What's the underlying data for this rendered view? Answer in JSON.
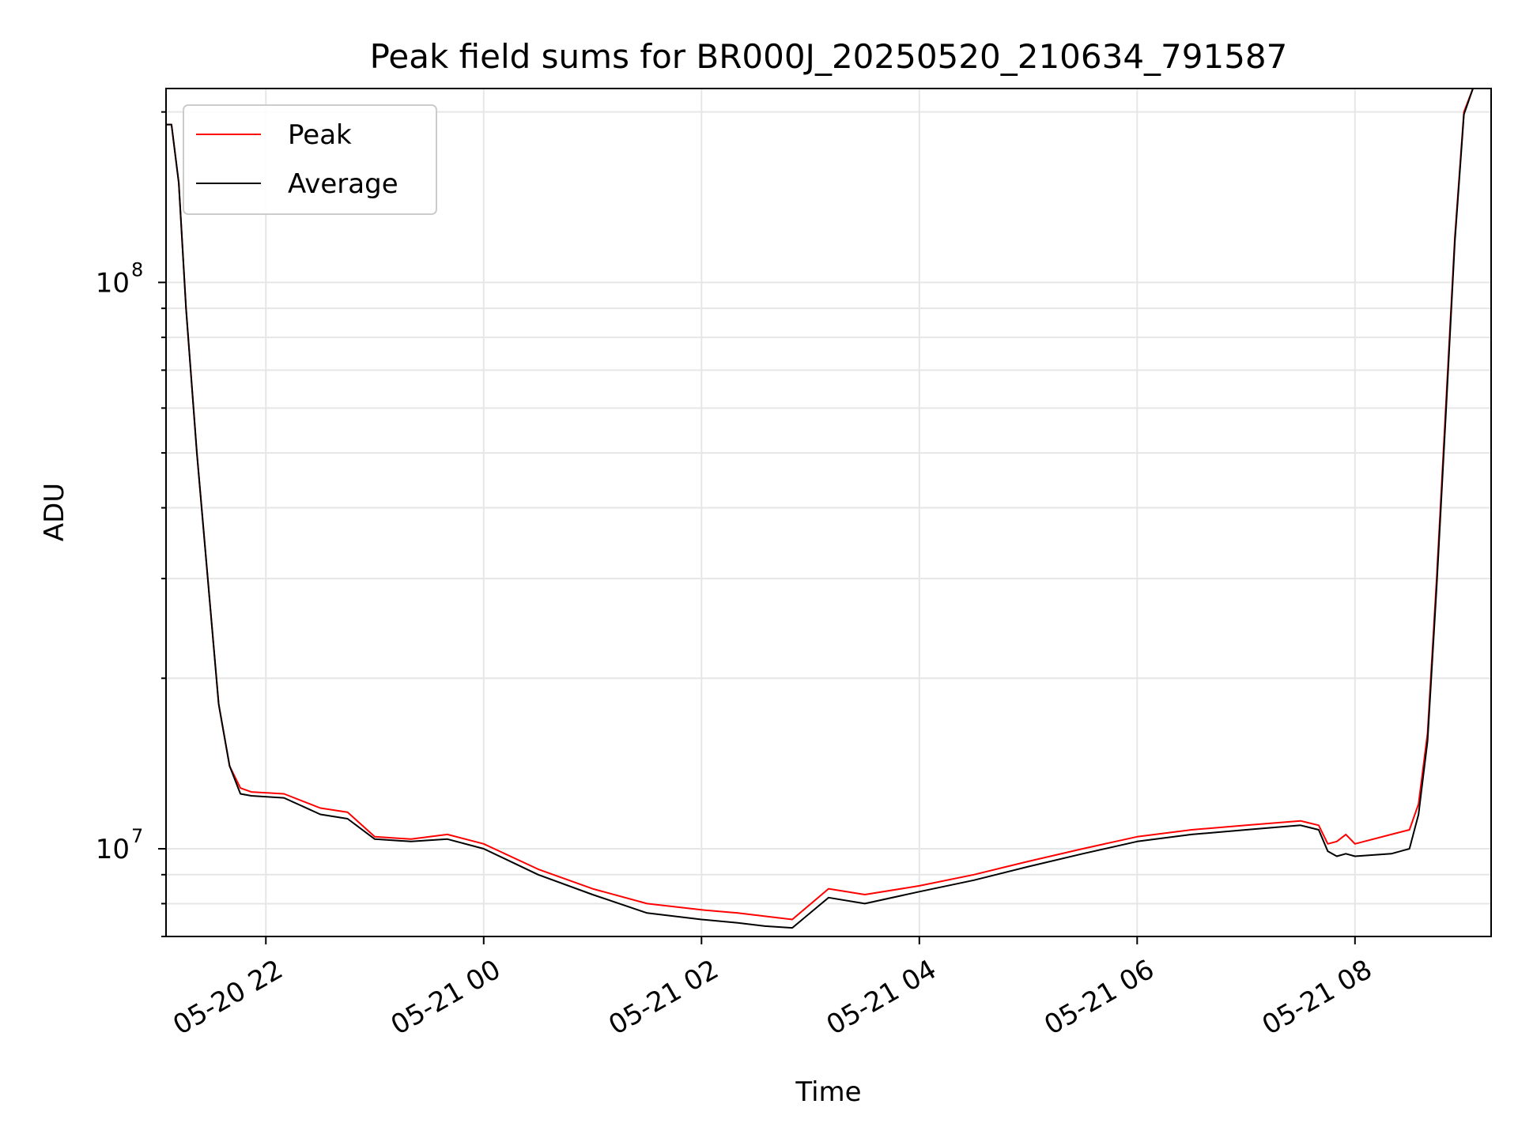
{
  "chart_data": {
    "type": "line",
    "title": "Peak field sums for BR000J_20250520_210634_791587",
    "xlabel": "Time",
    "ylabel": "ADU",
    "yscale": "log",
    "xlim": [
      "2025-05-20 21:05",
      "2025-05-21 09:15"
    ],
    "ylim": [
      7000000,
      220000000
    ],
    "grid": true,
    "legend": {
      "placement": "top-left",
      "entries": [
        "Peak",
        "Average"
      ]
    },
    "x_ticks": [
      "05-20 22",
      "05-21 00",
      "05-21 02",
      "05-21 04",
      "05-21 06",
      "05-21 08"
    ],
    "y_ticks": [
      {
        "base": "10",
        "exp": "7",
        "value": 10000000
      },
      {
        "base": "10",
        "exp": "8",
        "value": 100000000
      }
    ],
    "colors": {
      "Peak": "#ff0000",
      "Average": "#000000",
      "grid": "#e6e6e6"
    },
    "x": [
      "2025-05-20 21:05",
      "2025-05-20 21:08",
      "2025-05-20 21:12",
      "2025-05-20 21:16",
      "2025-05-20 21:22",
      "2025-05-20 21:28",
      "2025-05-20 21:34",
      "2025-05-20 21:40",
      "2025-05-20 21:46",
      "2025-05-20 21:52",
      "2025-05-20 22:10",
      "2025-05-20 22:30",
      "2025-05-20 22:45",
      "2025-05-20 23:00",
      "2025-05-20 23:20",
      "2025-05-20 23:40",
      "2025-05-21 00:00",
      "2025-05-21 00:30",
      "2025-05-21 01:00",
      "2025-05-21 01:30",
      "2025-05-21 02:00",
      "2025-05-21 02:20",
      "2025-05-21 02:35",
      "2025-05-21 02:50",
      "2025-05-21 03:10",
      "2025-05-21 03:30",
      "2025-05-21 04:00",
      "2025-05-21 04:30",
      "2025-05-21 05:00",
      "2025-05-21 05:30",
      "2025-05-21 06:00",
      "2025-05-21 06:30",
      "2025-05-21 07:00",
      "2025-05-21 07:30",
      "2025-05-21 07:40",
      "2025-05-21 07:45",
      "2025-05-21 07:50",
      "2025-05-21 07:55",
      "2025-05-21 08:00",
      "2025-05-21 08:20",
      "2025-05-21 08:30",
      "2025-05-21 08:35",
      "2025-05-21 08:40",
      "2025-05-21 08:45",
      "2025-05-21 08:50",
      "2025-05-21 08:55",
      "2025-05-21 09:00",
      "2025-05-21 09:05",
      "2025-05-21 09:10"
    ],
    "series": [
      {
        "name": "Peak",
        "values": [
          190000000,
          190000000,
          150000000,
          90000000,
          50000000,
          30000000,
          18000000,
          14000000,
          12800000,
          12600000,
          12500000,
          11800000,
          11600000,
          10500000,
          10400000,
          10600000,
          10200000,
          9200000,
          8500000,
          8000000,
          7800000,
          7700000,
          7600000,
          7500000,
          8500000,
          8300000,
          8600000,
          9000000,
          9500000,
          10000000,
          10500000,
          10800000,
          11000000,
          11200000,
          11000000,
          10200000,
          10300000,
          10600000,
          10200000,
          10600000,
          10800000,
          12000000,
          16000000,
          30000000,
          60000000,
          120000000,
          200000000,
          220000000,
          220000000
        ]
      },
      {
        "name": "Average",
        "values": [
          190000000,
          190000000,
          150000000,
          90000000,
          50000000,
          30000000,
          18000000,
          14000000,
          12500000,
          12400000,
          12300000,
          11500000,
          11300000,
          10400000,
          10300000,
          10400000,
          10000000,
          9000000,
          8300000,
          7700000,
          7500000,
          7400000,
          7300000,
          7250000,
          8200000,
          8000000,
          8400000,
          8800000,
          9300000,
          9800000,
          10300000,
          10600000,
          10800000,
          11000000,
          10800000,
          9900000,
          9700000,
          9800000,
          9700000,
          9800000,
          10000000,
          11500000,
          15500000,
          29000000,
          58000000,
          118000000,
          198000000,
          220000000,
          220000000
        ]
      }
    ]
  }
}
